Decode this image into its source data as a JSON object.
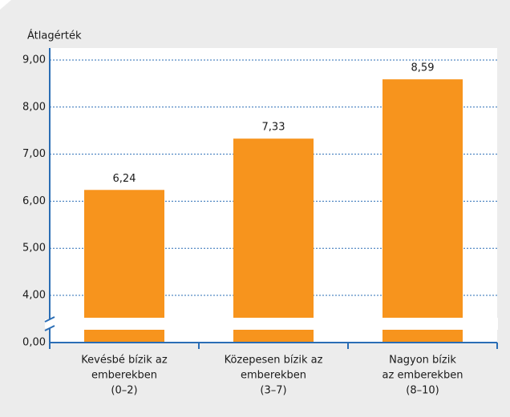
{
  "chart_data": {
    "type": "bar",
    "y_axis_title": "Átlagérték",
    "categories": [
      [
        "Kevésbé bízik az",
        "emberekben",
        "(0–2)"
      ],
      [
        "Közepesen bízik az",
        "emberekben",
        "(3–7)"
      ],
      [
        "Nagyon bízik",
        "az emberekben",
        "(8–10)"
      ]
    ],
    "values": [
      6.24,
      7.33,
      8.59
    ],
    "value_labels": [
      "6,24",
      "7,33",
      "8,59"
    ],
    "color": "#f7941d",
    "ylim": [
      0,
      9
    ],
    "axis_break": true,
    "yticks": [
      {
        "value": 0,
        "label": "0,00"
      },
      {
        "value": 4,
        "label": "4,00"
      },
      {
        "value": 5,
        "label": "5,00"
      },
      {
        "value": 6,
        "label": "6,00"
      },
      {
        "value": 7,
        "label": "7,00"
      },
      {
        "value": 8,
        "label": "8,00"
      },
      {
        "value": 9,
        "label": "9,00"
      }
    ],
    "grid": true
  }
}
